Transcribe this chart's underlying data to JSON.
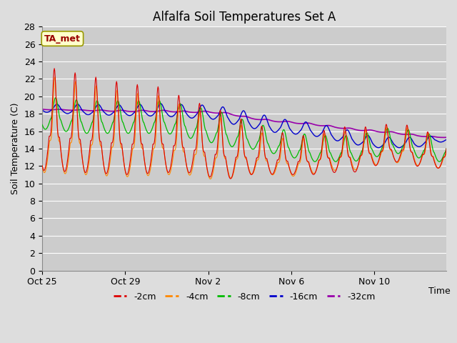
{
  "title": "Alfalfa Soil Temperatures Set A",
  "xlabel": "Time",
  "ylabel": "Soil Temperature (C)",
  "ylim": [
    0,
    28
  ],
  "yticks": [
    0,
    2,
    4,
    6,
    8,
    10,
    12,
    14,
    16,
    18,
    20,
    22,
    24,
    26,
    28
  ],
  "xtick_labels": [
    "Oct 25",
    "Oct 29",
    "Nov 2",
    "Nov 6",
    "Nov 10"
  ],
  "annotation_text": "TA_met",
  "annotation_color": "#990000",
  "annotation_bg": "#ffffcc",
  "annotation_border": "#999900",
  "series_colors": {
    "-2cm": "#dd0000",
    "-4cm": "#ff8800",
    "-8cm": "#00bb00",
    "-16cm": "#0000cc",
    "-32cm": "#9900aa"
  },
  "bg_color": "#dddddd",
  "plot_bg_color": "#cccccc",
  "grid_color": "#ffffff",
  "title_fontsize": 12,
  "axis_fontsize": 9,
  "tick_fontsize": 9
}
